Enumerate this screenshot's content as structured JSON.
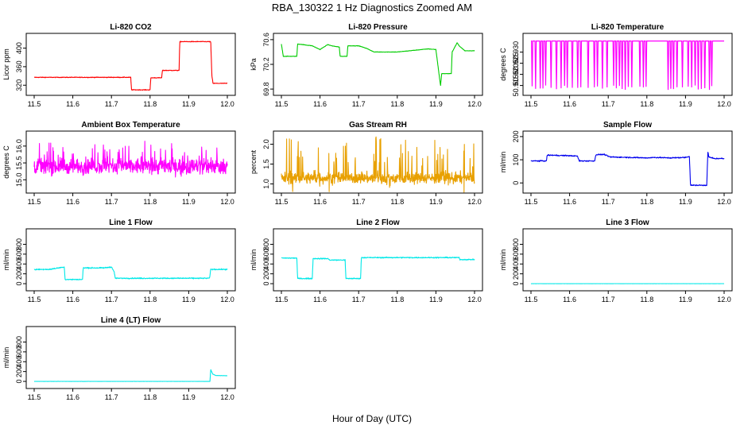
{
  "figure": {
    "title": "RBA_130322  1 Hz Diagnostics Zoomed AM",
    "xlabel": "Hour of Day (UTC)"
  },
  "chart_data": [
    {
      "type": "line",
      "title": "Li-820 CO2",
      "ylabel": "Licor ppm",
      "color": "#ff0000",
      "xlim": [
        11.5,
        12.0
      ],
      "ylim": [
        305,
        425
      ],
      "xticks": [
        11.5,
        11.6,
        11.7,
        11.8,
        11.9,
        12.0
      ],
      "xtick_labels": [
        "11.5",
        "11.6",
        "11.7",
        "11.8",
        "11.9",
        "12.0"
      ],
      "yticks": [
        320,
        360,
        400
      ],
      "ytick_labels": [
        "320",
        "360",
        "400"
      ],
      "noise": 1.2,
      "series": [
        {
          "x": [
            11.5,
            11.75,
            11.752,
            11.8,
            11.802,
            11.83,
            11.832,
            11.875,
            11.877,
            11.957,
            11.96,
            11.963,
            12.0
          ],
          "y": [
            337,
            337,
            310,
            310,
            336,
            336,
            352,
            352,
            414,
            414,
            340,
            324,
            324
          ]
        }
      ]
    },
    {
      "type": "line",
      "title": "Li-820 Pressure",
      "ylabel": "kPa",
      "color": "#00cc00",
      "xlim": [
        11.5,
        12.0
      ],
      "ylim": [
        69.75,
        70.65
      ],
      "xticks": [
        11.5,
        11.6,
        11.7,
        11.8,
        11.9,
        12.0
      ],
      "xtick_labels": [
        "11.5",
        "11.6",
        "11.7",
        "11.8",
        "11.9",
        "12.0"
      ],
      "yticks": [
        69.8,
        70.2,
        70.6
      ],
      "ytick_labels": [
        "69.8",
        "70.2",
        "70.6"
      ],
      "noise": 0.006,
      "series": [
        {
          "x": [
            11.5,
            11.505,
            11.54,
            11.542,
            11.58,
            11.6,
            11.62,
            11.63,
            11.65,
            11.652,
            11.67,
            11.672,
            11.7,
            11.72,
            11.74,
            11.8,
            11.88,
            11.9,
            11.912,
            11.915,
            11.94,
            11.942,
            11.955,
            11.96,
            11.975,
            12.0
          ],
          "y": [
            70.53,
            70.33,
            70.33,
            70.53,
            70.5,
            70.44,
            70.52,
            70.5,
            70.48,
            70.33,
            70.33,
            70.5,
            70.5,
            70.46,
            70.4,
            70.4,
            70.45,
            70.44,
            69.85,
            70.05,
            70.05,
            70.4,
            70.55,
            70.5,
            70.42,
            70.42
          ]
        }
      ]
    },
    {
      "type": "line",
      "title": "Li-820 Temperature",
      "ylabel": "degrees C",
      "color": "#ff00ff",
      "xlim": [
        11.5,
        12.0
      ],
      "ylim": [
        50.912,
        50.937
      ],
      "xticks": [
        11.5,
        11.6,
        11.7,
        11.8,
        11.9,
        12.0
      ],
      "xtick_labels": [
        "11.5",
        "11.6",
        "11.7",
        "11.8",
        "11.9",
        "12.0"
      ],
      "yticks": [
        50.915,
        50.92,
        50.925,
        50.93
      ],
      "ytick_labels": [
        "50.915",
        "50.920",
        "50.925",
        "50.930"
      ],
      "baseline": 50.935,
      "low": 50.913,
      "drops": [
        11.503,
        11.512,
        11.524,
        11.531,
        11.538,
        11.552,
        11.566,
        11.578,
        11.587,
        11.594,
        11.607,
        11.621,
        11.629,
        11.648,
        11.664,
        11.672,
        11.685,
        11.697,
        11.714,
        11.721,
        11.729,
        11.736,
        11.744,
        11.752,
        11.761,
        11.782,
        11.791,
        11.798,
        11.855,
        11.862,
        11.869,
        11.878,
        11.892,
        11.907,
        11.916,
        11.925,
        11.933,
        11.941,
        11.95,
        11.962,
        11.968
      ]
    },
    {
      "type": "line",
      "title": "Ambient Box Temperature",
      "ylabel": "degrees C",
      "color": "#ff00ff",
      "xlim": [
        11.5,
        12.0
      ],
      "ylim": [
        14.7,
        16.35
      ],
      "xticks": [
        11.5,
        11.6,
        11.7,
        11.8,
        11.9,
        12.0
      ],
      "xtick_labels": [
        "11.5",
        "11.6",
        "11.7",
        "11.8",
        "11.9",
        "12.0"
      ],
      "yticks": [
        15.0,
        15.5,
        16.0
      ],
      "ytick_labels": [
        "15.0",
        "15.5",
        "16.0"
      ],
      "mean": 15.4,
      "spread": 0.2,
      "spikes": 0.55
    },
    {
      "type": "line",
      "title": "Gas Stream RH",
      "ylabel": "percent",
      "color": "#e8a000",
      "xlim": [
        11.5,
        12.0
      ],
      "ylim": [
        0.85,
        2.25
      ],
      "xticks": [
        11.5,
        11.6,
        11.7,
        11.8,
        11.9,
        12.0
      ],
      "xtick_labels": [
        "11.5",
        "11.6",
        "11.7",
        "11.8",
        "11.9",
        "12.0"
      ],
      "yticks": [
        1.0,
        1.5,
        2.0
      ],
      "ytick_labels": [
        "1.0",
        "1.5",
        "2.0"
      ],
      "mean": 1.15,
      "spread": 0.12,
      "spikes": 0.9
    },
    {
      "type": "line",
      "title": "Sample Flow",
      "ylabel": "ml/min",
      "color": "#0000ee",
      "xlim": [
        11.5,
        12.0
      ],
      "ylim": [
        -30,
        210
      ],
      "xticks": [
        11.5,
        11.6,
        11.7,
        11.8,
        11.9,
        12.0
      ],
      "xtick_labels": [
        "11.5",
        "11.6",
        "11.7",
        "11.8",
        "11.9",
        "12.0"
      ],
      "yticks": [
        0,
        100,
        200
      ],
      "ytick_labels": [
        "0",
        "100",
        "200"
      ],
      "noise": 4,
      "series": [
        {
          "x": [
            11.5,
            11.54,
            11.542,
            11.59,
            11.62,
            11.625,
            11.665,
            11.668,
            11.69,
            11.7,
            11.705,
            11.76,
            11.8,
            11.82,
            11.86,
            11.9,
            11.91,
            11.913,
            11.955,
            11.958,
            11.96,
            11.975,
            12.0
          ],
          "y": [
            95,
            95,
            120,
            118,
            116,
            95,
            95,
            122,
            123,
            115,
            112,
            110,
            108,
            110,
            108,
            110,
            115,
            -10,
            -10,
            140,
            112,
            105,
            105
          ]
        }
      ]
    },
    {
      "type": "line",
      "title": "Line 1 Flow",
      "ylabel": "ml/min",
      "color": "#00e8e8",
      "xlim": [
        11.5,
        12.0
      ],
      "ylim": [
        -80,
        1050
      ],
      "xticks": [
        11.5,
        11.6,
        11.7,
        11.8,
        11.9,
        12.0
      ],
      "xtick_labels": [
        "11.5",
        "11.6",
        "11.7",
        "11.8",
        "11.9",
        "12.0"
      ],
      "yticks": [
        0,
        200,
        400,
        600,
        800
      ],
      "ytick_labels": [
        "0",
        "200",
        "400",
        "600",
        "800"
      ],
      "noise": 18,
      "series": [
        {
          "x": [
            11.5,
            11.54,
            11.578,
            11.58,
            11.625,
            11.627,
            11.68,
            11.7,
            11.707,
            11.71,
            11.954,
            11.957,
            12.0
          ],
          "y": [
            290,
            290,
            340,
            85,
            85,
            320,
            320,
            340,
            240,
            110,
            110,
            290,
            290
          ]
        }
      ]
    },
    {
      "type": "line",
      "title": "Line 2 Flow",
      "ylabel": "ml/min",
      "color": "#00e8e8",
      "xlim": [
        11.5,
        12.0
      ],
      "ylim": [
        -80,
        1050
      ],
      "xticks": [
        11.5,
        11.6,
        11.7,
        11.8,
        11.9,
        12.0
      ],
      "xtick_labels": [
        "11.5",
        "11.6",
        "11.7",
        "11.8",
        "11.9",
        "12.0"
      ],
      "yticks": [
        0,
        200,
        400,
        600,
        800
      ],
      "ytick_labels": [
        "0",
        "200",
        "400",
        "600",
        "800"
      ],
      "noise": 18,
      "series": [
        {
          "x": [
            11.5,
            11.54,
            11.542,
            11.58,
            11.582,
            11.62,
            11.625,
            11.665,
            11.667,
            11.705,
            11.707,
            11.96,
            11.962,
            12.0
          ],
          "y": [
            520,
            520,
            105,
            105,
            510,
            510,
            480,
            480,
            105,
            105,
            530,
            530,
            490,
            490
          ]
        }
      ]
    },
    {
      "type": "line",
      "title": "Line 3 Flow",
      "ylabel": "ml/min",
      "color": "#00e8e8",
      "xlim": [
        11.5,
        12.0
      ],
      "ylim": [
        -80,
        1050
      ],
      "xticks": [
        11.5,
        11.6,
        11.7,
        11.8,
        11.9,
        12.0
      ],
      "xtick_labels": [
        "11.5",
        "11.6",
        "11.7",
        "11.8",
        "11.9",
        "12.0"
      ],
      "yticks": [
        0,
        200,
        400,
        600,
        800
      ],
      "ytick_labels": [
        "0",
        "200",
        "400",
        "600",
        "800"
      ],
      "noise": 2,
      "series": [
        {
          "x": [
            11.5,
            12.0
          ],
          "y": [
            0,
            0
          ]
        }
      ]
    },
    {
      "type": "line",
      "title": "Line 4 (LT) Flow",
      "ylabel": "ml/min",
      "color": "#00e8e8",
      "xlim": [
        11.5,
        12.0
      ],
      "ylim": [
        -80,
        1050
      ],
      "xticks": [
        11.5,
        11.6,
        11.7,
        11.8,
        11.9,
        12.0
      ],
      "xtick_labels": [
        "11.5",
        "11.6",
        "11.7",
        "11.8",
        "11.9",
        "12.0"
      ],
      "yticks": [
        0,
        200,
        400,
        600,
        800
      ],
      "ytick_labels": [
        "0",
        "200",
        "400",
        "600",
        "800"
      ],
      "noise": 3,
      "series": [
        {
          "x": [
            11.5,
            11.955,
            11.957,
            11.962,
            11.97,
            12.0
          ],
          "y": [
            0,
            0,
            240,
            150,
            120,
            115
          ]
        }
      ]
    }
  ]
}
